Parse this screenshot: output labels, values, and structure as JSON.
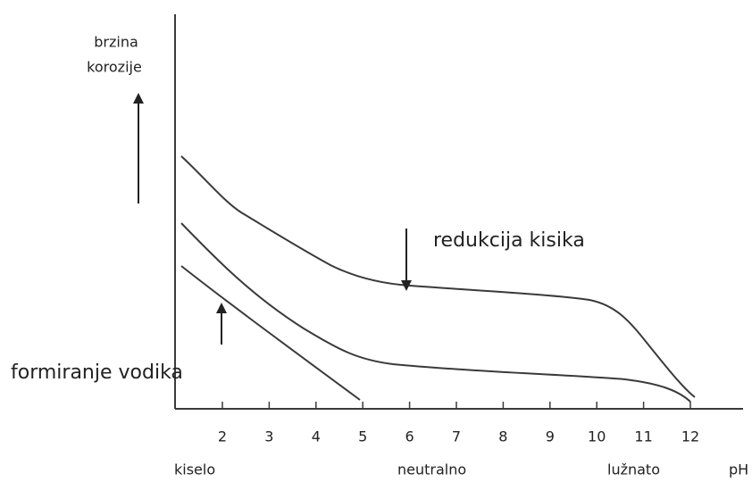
{
  "y_label": [
    "brzina",
    "korozije"
  ],
  "x_ticks": [
    "2",
    "3",
    "4",
    "5",
    "6",
    "7",
    "8",
    "9",
    "10",
    "11",
    "12"
  ],
  "annotations": {
    "oxygen": "redukcija kisika",
    "hydrogen": "formiranje vodika"
  },
  "regions": [
    "kiselo",
    "neutralno",
    "lužnato"
  ],
  "x_label": "pH"
}
